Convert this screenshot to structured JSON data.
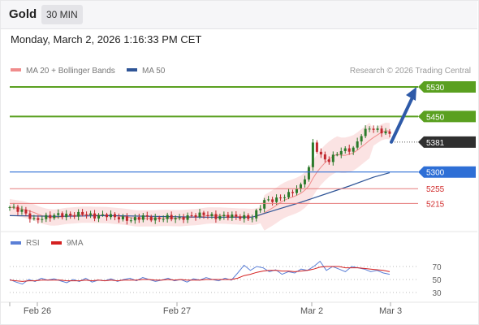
{
  "header": {
    "symbol": "Gold",
    "interval": "30 MIN"
  },
  "datetime": "Monday, March 2, 2026 1:16:33 PM CET",
  "legend": {
    "bollinger": {
      "label": "MA 20 + Bollinger Bands",
      "color": "#f08c8c"
    },
    "ma50": {
      "label": "MA 50",
      "color": "#2f5597"
    },
    "credit": "Research © 2026 Trading Central"
  },
  "colors": {
    "resistance": "#5aa020",
    "support": "#2e6fd6",
    "weak_support": "#e57a7a",
    "current": "#2f2f2f",
    "up_candle": "#2a7a2a",
    "down_candle": "#c0272d",
    "band_fill": "#fbe3e3",
    "arrow": "#2e5aa8",
    "rsi": "#5b7fd6",
    "rsi_ma": "#d42020"
  },
  "indicator_legend": {
    "rsi": {
      "label": "RSI",
      "color": "#5b7fd6"
    },
    "ma9": {
      "label": "9MA",
      "color": "#d42020"
    }
  },
  "chart_data": [
    {
      "type": "candlestick",
      "x_labels": [
        "Feb 26",
        "Feb 27",
        "Mar 2",
        "Mar 3"
      ],
      "price_levels": [
        {
          "value": 5530,
          "label": "5530",
          "kind": "resistance"
        },
        {
          "value": 5450,
          "label": "5450",
          "kind": "resistance"
        },
        {
          "value": 5381,
          "label": "5381",
          "kind": "current"
        },
        {
          "value": 5300,
          "label": "5300",
          "kind": "support"
        },
        {
          "value": 5255,
          "label": "5255",
          "kind": "weak_support"
        },
        {
          "value": 5215,
          "label": "5215",
          "kind": "weak_support"
        }
      ],
      "close_path": [
        [
          0,
          5205
        ],
        [
          3,
          5195
        ],
        [
          6,
          5170
        ],
        [
          9,
          5178
        ],
        [
          12,
          5185
        ],
        [
          15,
          5182
        ],
        [
          18,
          5188
        ],
        [
          21,
          5180
        ],
        [
          24,
          5184
        ],
        [
          27,
          5176
        ],
        [
          30,
          5170
        ],
        [
          33,
          5180
        ],
        [
          36,
          5172
        ],
        [
          39,
          5178
        ],
        [
          42,
          5174
        ],
        [
          45,
          5182
        ],
        [
          48,
          5186
        ],
        [
          51,
          5178
        ],
        [
          54,
          5182
        ],
        [
          57,
          5178
        ],
        [
          60,
          5176
        ],
        [
          63,
          5222
        ],
        [
          66,
          5226
        ],
        [
          69,
          5240
        ],
        [
          72,
          5262
        ],
        [
          74,
          5310
        ],
        [
          75,
          5378
        ],
        [
          77,
          5342
        ],
        [
          79,
          5330
        ],
        [
          81,
          5352
        ],
        [
          83,
          5360
        ],
        [
          85,
          5362
        ],
        [
          87,
          5402
        ],
        [
          89,
          5420
        ],
        [
          91,
          5412
        ],
        [
          93,
          5408
        ],
        [
          94,
          5400
        ]
      ],
      "ma50_path": [
        [
          0,
          5182
        ],
        [
          12,
          5180
        ],
        [
          24,
          5182
        ],
        [
          36,
          5180
        ],
        [
          48,
          5178
        ],
        [
          60,
          5178
        ],
        [
          66,
          5198
        ],
        [
          72,
          5218
        ],
        [
          78,
          5240
        ],
        [
          84,
          5262
        ],
        [
          90,
          5286
        ],
        [
          94,
          5298
        ]
      ],
      "forecast_arrow": {
        "from": 5381,
        "to": 5530
      },
      "ylim": [
        5150,
        5580
      ]
    },
    {
      "type": "line",
      "ticks": [
        70,
        50,
        30
      ],
      "series": [
        {
          "name": "RSI",
          "values": [
            50,
            46,
            43,
            50,
            47,
            52,
            49,
            51,
            48,
            45,
            50,
            47,
            52,
            46,
            49,
            48,
            51,
            47,
            50,
            52,
            48,
            53,
            50,
            47,
            49,
            52,
            48,
            50,
            46,
            51,
            49,
            53,
            50,
            48,
            52,
            49,
            60,
            72,
            64,
            70,
            68,
            62,
            65,
            58,
            62,
            60,
            66,
            64,
            70,
            78,
            64,
            70,
            66,
            62,
            70,
            68,
            66,
            62,
            64,
            60,
            58
          ]
        },
        {
          "name": "9MA",
          "values": [
            49,
            48,
            47,
            48,
            48,
            49,
            49,
            49,
            49,
            48,
            48,
            48,
            49,
            48,
            49,
            48,
            49,
            48,
            49,
            49,
            49,
            50,
            50,
            49,
            49,
            50,
            49,
            50,
            49,
            49,
            49,
            50,
            50,
            50,
            50,
            50,
            52,
            56,
            58,
            61,
            63,
            64,
            64,
            63,
            63,
            62,
            63,
            64,
            66,
            69,
            70,
            70,
            70,
            68,
            68,
            68,
            67,
            66,
            65,
            64,
            62
          ]
        }
      ],
      "ylim": [
        20,
        80
      ]
    }
  ]
}
